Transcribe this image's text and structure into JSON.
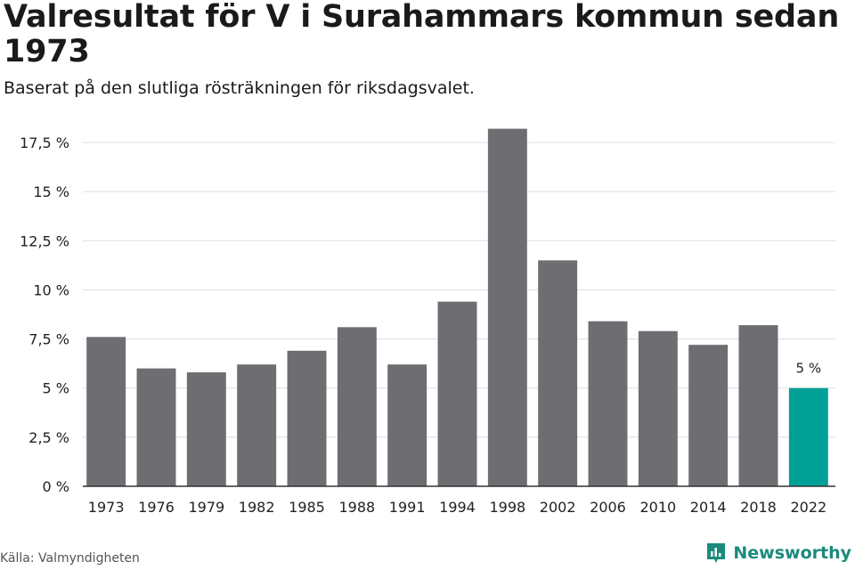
{
  "title": "Valresultat för V i Surahammars kommun sedan 1973",
  "subtitle": "Baserat på den slutliga rösträkningen för riksdagsvalet.",
  "source": "Källa: Valmyndigheten",
  "brand": {
    "name": "Newsworthy",
    "icon": "newsworthy-logo-icon",
    "color": "#1b8a7d"
  },
  "colors": {
    "bar": "#6e6d72",
    "highlight": "#00a096",
    "grid": "#dddddd",
    "axis": "#333333"
  },
  "chart_data": {
    "type": "bar",
    "categories": [
      "1973",
      "1976",
      "1979",
      "1982",
      "1985",
      "1988",
      "1991",
      "1994",
      "1998",
      "2002",
      "2006",
      "2010",
      "2014",
      "2018",
      "2022"
    ],
    "values": [
      7.6,
      6.0,
      5.8,
      6.2,
      6.9,
      8.1,
      6.2,
      9.4,
      18.2,
      11.5,
      8.4,
      7.9,
      7.2,
      8.2,
      5.0
    ],
    "highlight_index": 14,
    "data_labels": [
      {
        "index": 14,
        "text": "5 %"
      }
    ],
    "yticks": [
      {
        "value": 0,
        "label": "0 %"
      },
      {
        "value": 2.5,
        "label": "2,5 %"
      },
      {
        "value": 5,
        "label": "5 %"
      },
      {
        "value": 7.5,
        "label": "7,5 %"
      },
      {
        "value": 10,
        "label": "10 %"
      },
      {
        "value": 12.5,
        "label": "12,5 %"
      },
      {
        "value": 15,
        "label": "15 %"
      },
      {
        "value": 17.5,
        "label": "17,5 %"
      }
    ],
    "ylim": [
      0,
      17.5
    ],
    "grid": true
  }
}
